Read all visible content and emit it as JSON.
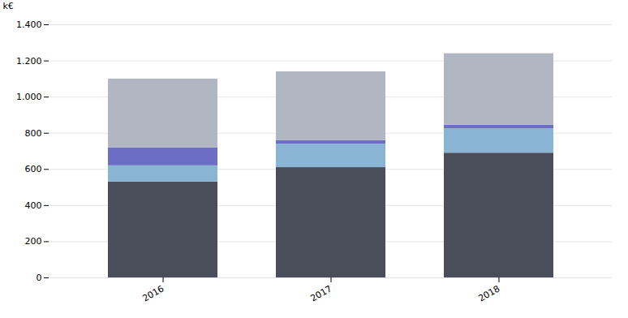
{
  "chart_data": {
    "type": "bar",
    "stacked": true,
    "categories": [
      "2016",
      "2017",
      "2018"
    ],
    "series": [
      {
        "color": "#4a4e5a",
        "values": [
          530,
          610,
          690
        ]
      },
      {
        "color": "#8ab4d4",
        "values": [
          90,
          130,
          135
        ]
      },
      {
        "color": "#6b6ec4",
        "values": [
          100,
          20,
          20
        ]
      },
      {
        "color": "#b0b6c2",
        "values": [
          380,
          380,
          395
        ]
      }
    ],
    "ylabel": "k€",
    "ylim": [
      0,
      1400
    ],
    "yticks": [
      0,
      200,
      400,
      600,
      800,
      {
        "value": 1000,
        "label": "1.000"
      },
      {
        "value": 1200,
        "label": "1.200"
      },
      {
        "value": 1400,
        "label": "1.400"
      }
    ],
    "grid": true
  }
}
